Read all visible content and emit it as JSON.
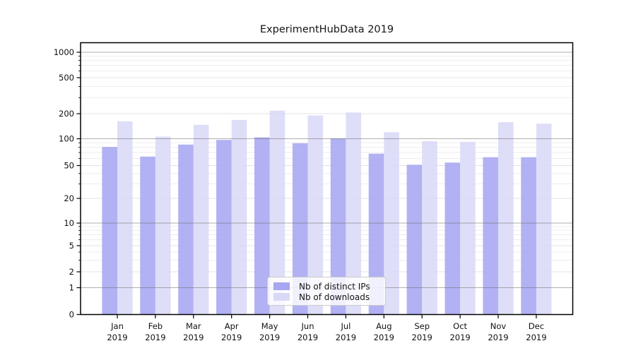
{
  "title": "ExperimentHubData 2019",
  "chart_data": {
    "type": "bar",
    "title": "ExperimentHubData 2019",
    "categories": [
      "Jan",
      "Feb",
      "Mar",
      "Apr",
      "May",
      "Jun",
      "Jul",
      "Aug",
      "Sep",
      "Oct",
      "Nov",
      "Dec"
    ],
    "category_year": "2019",
    "series": [
      {
        "name": "Nb of distinct IPs",
        "color": "#a6a6f1",
        "values": [
          81,
          63,
          86,
          97,
          104,
          89,
          101,
          68,
          51,
          54,
          62,
          62
        ]
      },
      {
        "name": "Nb of downloads",
        "color": "#d9d9f7",
        "values": [
          162,
          106,
          147,
          168,
          216,
          190,
          206,
          120,
          94,
          92,
          158,
          152
        ]
      }
    ],
    "yscale": "symlog",
    "yticks": [
      0,
      1,
      2,
      5,
      10,
      20,
      50,
      100,
      200,
      500,
      1000
    ],
    "minor_yticks": [
      3,
      4,
      6,
      7,
      8,
      9,
      30,
      40,
      60,
      70,
      80,
      90,
      300,
      400,
      600,
      700,
      800,
      900
    ],
    "ylim": [
      0,
      1300
    ],
    "grid": "horizontal",
    "legend_position": "lower center",
    "colors": {
      "axis": "#000000",
      "major_grid": "#9a9a9a",
      "minor_grid": "#ededed",
      "labeled_grid": "#e3e3e3",
      "text": "#111111"
    }
  }
}
